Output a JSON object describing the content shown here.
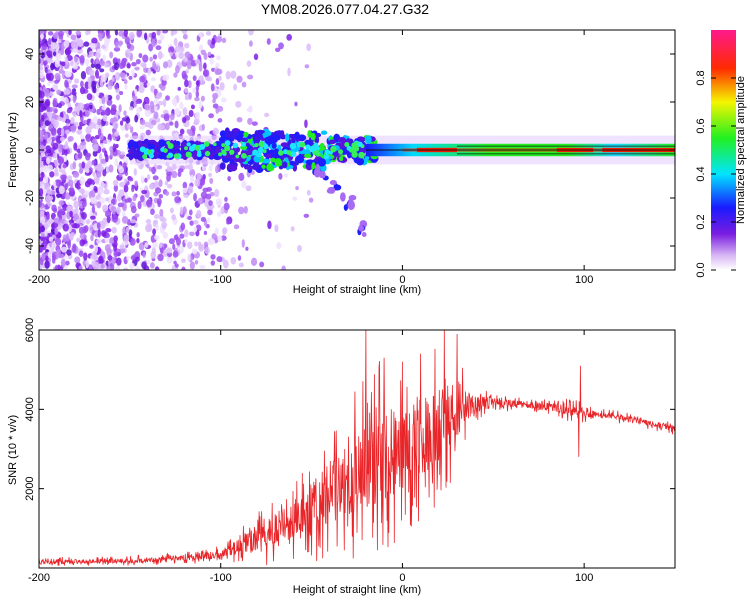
{
  "figure_title": "YM08.2026.077.04.27.G32",
  "colors": {
    "snr_line": "#e8262a",
    "frame": "#000000",
    "bg": "#ffffff"
  },
  "chart_data": [
    {
      "type": "heatmap",
      "title": "YM08.2026.077.04.27.G32",
      "xlabel": "Height of straight line (km)",
      "ylabel": "Frequency (Hz)",
      "xlim": [
        -200,
        150
      ],
      "ylim": [
        -50,
        50
      ],
      "x_ticks": [
        -200,
        -100,
        0,
        100
      ],
      "x_tick_labels": [
        "-200",
        "-100",
        "0",
        "100"
      ],
      "y_ticks": [
        -40,
        -20,
        0,
        20,
        40
      ],
      "y_tick_labels": [
        "-40",
        "-20",
        "0",
        "20",
        "40"
      ],
      "colorbar": {
        "label": "Normalized spectral amplitude",
        "range": [
          0,
          1
        ],
        "ticks": [
          0.0,
          0.2,
          0.4,
          0.6,
          0.8
        ],
        "tick_labels": [
          "0.0",
          "0.2",
          "0.4",
          "0.6",
          "0.8"
        ],
        "colormap": "rainbow (purple → blue → cyan → green → yellow → red → magenta)"
      },
      "features": {
        "noise_region_x": [
          -200,
          -100
        ],
        "dominant_line_freq_hz": 0,
        "strong_band_start_x": -145,
        "diverging_branch": [
          [
            -45,
            -10
          ],
          [
            -38,
            -15
          ],
          [
            -30,
            -22
          ],
          [
            -23,
            -33
          ]
        ],
        "peak_zone_x": [
          0,
          150
        ]
      }
    },
    {
      "type": "line",
      "xlabel": "Height of straight line (km)",
      "ylabel": "SNR (10 * v/v)",
      "xlim": [
        -200,
        150
      ],
      "ylim": [
        0,
        6000
      ],
      "x_ticks": [
        -200,
        -100,
        0,
        100
      ],
      "x_tick_labels": [
        "-200",
        "-100",
        "0",
        "100"
      ],
      "y_ticks": [
        2000,
        4000,
        6000
      ],
      "y_tick_labels": [
        "2000",
        "4000",
        "6000"
      ],
      "series": [
        {
          "name": "SNR",
          "color": "#e8262a",
          "envelope_x": [
            -200,
            -150,
            -120,
            -100,
            -90,
            -80,
            -70,
            -60,
            -50,
            -40,
            -30,
            -20,
            -10,
            0,
            10,
            20,
            30,
            40,
            50,
            60,
            70,
            80,
            90,
            95,
            100,
            110,
            120,
            130,
            140,
            150
          ],
          "envelope_mean": [
            150,
            180,
            250,
            350,
            550,
            750,
            950,
            1200,
            1500,
            1900,
            2300,
            2600,
            2800,
            3000,
            3300,
            3600,
            3900,
            4150,
            4200,
            4150,
            4100,
            4050,
            4000,
            3950,
            3900,
            3850,
            3800,
            3700,
            3600,
            3500
          ],
          "envelope_spread": [
            120,
            130,
            160,
            220,
            400,
            700,
            900,
            1200,
            1500,
            1800,
            2200,
            2400,
            2500,
            2300,
            2200,
            2100,
            1400,
            500,
            250,
            200,
            180,
            200,
            300,
            350,
            250,
            180,
            160,
            160,
            160,
            160
          ],
          "spikes": [
            [
              -20,
              6000
            ],
            [
              -10,
              5300
            ],
            [
              0,
              5200
            ],
            [
              10,
              5400
            ],
            [
              23,
              6000
            ],
            [
              30,
              5900
            ],
            [
              98,
              5100
            ],
            [
              97,
              2800
            ]
          ]
        }
      ]
    }
  ]
}
